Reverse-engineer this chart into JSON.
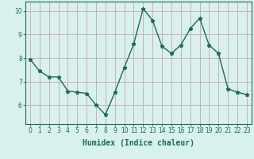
{
  "x": [
    0,
    1,
    2,
    3,
    4,
    5,
    6,
    7,
    8,
    9,
    10,
    11,
    12,
    13,
    14,
    15,
    16,
    17,
    18,
    19,
    20,
    21,
    22,
    23
  ],
  "y": [
    7.95,
    7.45,
    7.2,
    7.2,
    6.6,
    6.55,
    6.5,
    6.0,
    5.6,
    6.55,
    7.6,
    8.6,
    10.1,
    9.6,
    8.5,
    8.2,
    8.55,
    9.25,
    9.7,
    8.55,
    8.2,
    6.7,
    6.55,
    6.45
  ],
  "line_color": "#1a6b5a",
  "marker": "*",
  "marker_size": 3.5,
  "bg_color": "#d8f0ee",
  "grid_color": "#c8a8a8",
  "xlabel": "Humidex (Indice chaleur)",
  "xlabel_fontsize": 7,
  "xlim": [
    -0.5,
    23.5
  ],
  "ylim": [
    5.2,
    10.4
  ],
  "yticks": [
    6,
    7,
    8,
    9,
    10
  ],
  "xticks": [
    0,
    1,
    2,
    3,
    4,
    5,
    6,
    7,
    8,
    9,
    10,
    11,
    12,
    13,
    14,
    15,
    16,
    17,
    18,
    19,
    20,
    21,
    22,
    23
  ],
  "tick_label_fontsize": 5.5,
  "line_width": 1.0
}
